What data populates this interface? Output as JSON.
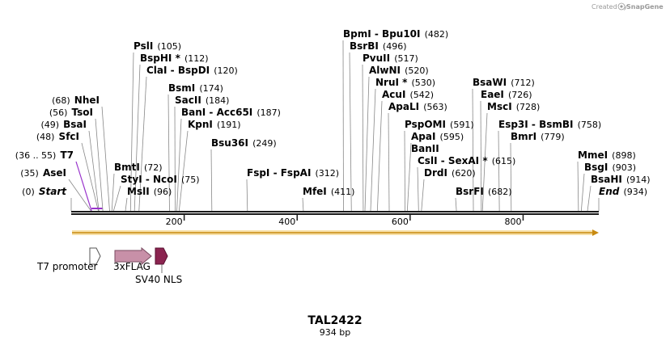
{
  "credit": {
    "prefix": "Created by",
    "brand": "SnapGene"
  },
  "plasmid": {
    "name": "TAL2422",
    "length_label": "934 bp",
    "length": 934
  },
  "axis_ticks": [
    {
      "pos": 200,
      "label": "200"
    },
    {
      "pos": 400,
      "label": "400"
    },
    {
      "pos": 600,
      "label": "600"
    },
    {
      "pos": 800,
      "label": "800"
    }
  ],
  "sites": [
    {
      "name": "Start",
      "pos_label": "(0)",
      "pos": 0,
      "italic": true
    },
    {
      "name": "AseI",
      "pos_label": "(35)",
      "pos": 35
    },
    {
      "name": "T7",
      "pos_label": "(36 .. 55)",
      "pos": 36,
      "primer": true
    },
    {
      "name": "SfcI",
      "pos_label": "(48)",
      "pos": 48
    },
    {
      "name": "BsaI",
      "pos_label": "(49)",
      "pos": 49
    },
    {
      "name": "TsoI",
      "pos_label": "(56)",
      "pos": 56
    },
    {
      "name": "NheI",
      "pos_label": "(68)",
      "pos": 68
    },
    {
      "name": "BmtI",
      "pos_label": "(72)",
      "pos": 72
    },
    {
      "name": "StyI - NcoI",
      "pos_label": "(75)",
      "pos": 75
    },
    {
      "name": "MslI",
      "pos_label": "(96)",
      "pos": 96
    },
    {
      "name": "PslI",
      "pos_label": "(105)",
      "pos": 105
    },
    {
      "name": "BspHI *",
      "pos_label": "(112)",
      "pos": 112
    },
    {
      "name": "ClaI - BspDI",
      "pos_label": "(120)",
      "pos": 120
    },
    {
      "name": "BsmI",
      "pos_label": "(174)",
      "pos": 174
    },
    {
      "name": "SacII",
      "pos_label": "(184)",
      "pos": 184
    },
    {
      "name": "BanI - Acc65I",
      "pos_label": "(187)",
      "pos": 187
    },
    {
      "name": "KpnI",
      "pos_label": "(191)",
      "pos": 191
    },
    {
      "name": "Bsu36I",
      "pos_label": "(249)",
      "pos": 249
    },
    {
      "name": "FspI - FspAI",
      "pos_label": "(312)",
      "pos": 312
    },
    {
      "name": "MfeI",
      "pos_label": "(411)",
      "pos": 411
    },
    {
      "name": "BpmI - Bpu10I",
      "pos_label": "(482)",
      "pos": 482
    },
    {
      "name": "BsrBI",
      "pos_label": "(496)",
      "pos": 496
    },
    {
      "name": "PvuII",
      "pos_label": "(517)",
      "pos": 517
    },
    {
      "name": "AlwNI",
      "pos_label": "(520)",
      "pos": 520
    },
    {
      "name": "NruI *",
      "pos_label": "(530)",
      "pos": 530
    },
    {
      "name": "AcuI",
      "pos_label": "(542)",
      "pos": 542
    },
    {
      "name": "ApaLI",
      "pos_label": "(563)",
      "pos": 563
    },
    {
      "name": "PspOMI",
      "pos_label": "(591)",
      "pos": 591
    },
    {
      "name": "ApaI",
      "pos_label": "(595)",
      "pos": 595
    },
    {
      "name": "BanII",
      "pos_label": "",
      "pos": 595
    },
    {
      "name": "CslI - SexAI *",
      "pos_label": "(615)",
      "pos": 615
    },
    {
      "name": "DrdI",
      "pos_label": "(620)",
      "pos": 620
    },
    {
      "name": "BsrFI",
      "pos_label": "(682)",
      "pos": 682
    },
    {
      "name": "BsaWI",
      "pos_label": "(712)",
      "pos": 712
    },
    {
      "name": "EaeI",
      "pos_label": "(726)",
      "pos": 726
    },
    {
      "name": "MscI",
      "pos_label": "(728)",
      "pos": 728
    },
    {
      "name": "Esp3I - BsmBI",
      "pos_label": "(758)",
      "pos": 758
    },
    {
      "name": "BmrI",
      "pos_label": "(779)",
      "pos": 779
    },
    {
      "name": "MmeI",
      "pos_label": "(898)",
      "pos": 898
    },
    {
      "name": "BsgI",
      "pos_label": "(903)",
      "pos": 903
    },
    {
      "name": "BsaHI",
      "pos_label": "(914)",
      "pos": 914
    },
    {
      "name": "End",
      "pos_label": "(934)",
      "pos": 934,
      "italic": true
    }
  ],
  "features": [
    {
      "name": "T7 promoter",
      "start": 36,
      "end": 55,
      "color": "#ffffff",
      "stroke": "#555555"
    },
    {
      "name": "3xFLAG",
      "start": 77,
      "end": 142,
      "color": "#c890a8",
      "stroke": "#7a4a60"
    },
    {
      "name": "SV40 NLS",
      "start": 151,
      "end": 171,
      "color": "#8b2450",
      "stroke": "#5a1030"
    }
  ],
  "colors": {
    "backbone": "#1a1a1a",
    "orf": "#e8b030",
    "primer": "#9933cc",
    "leader": "#888888"
  }
}
